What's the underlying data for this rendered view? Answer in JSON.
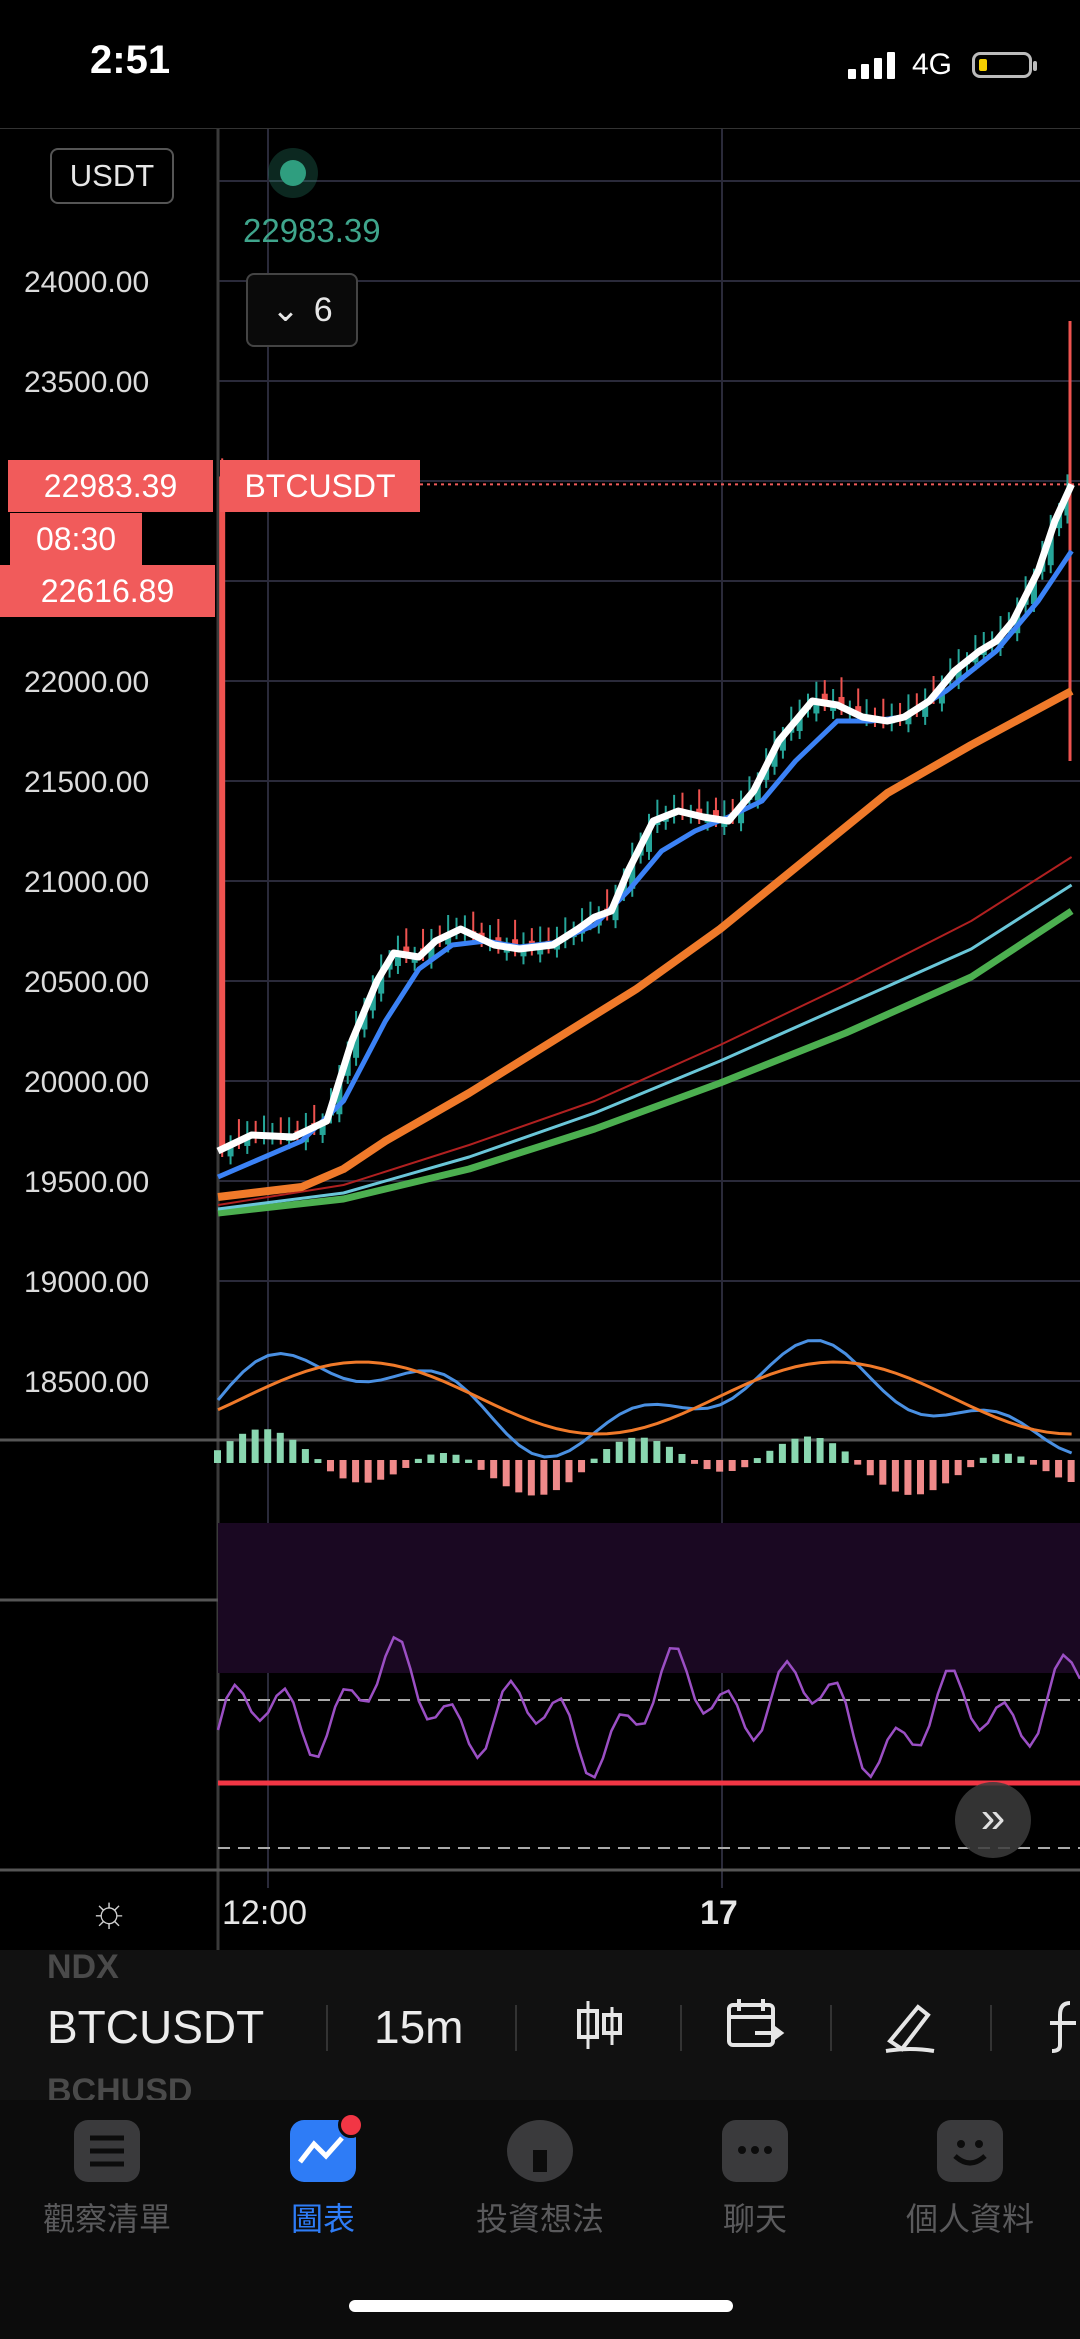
{
  "status_bar": {
    "time": "2:51",
    "network": "4G"
  },
  "chart": {
    "currency": "USDT",
    "live_price": "22983.39",
    "collapsed_count": "6",
    "price_tag": "22983.39",
    "symbol_tag": "BTCUSDT",
    "time_tag": "08:30",
    "low_tag": "22616.89",
    "x_labels": [
      "12:00",
      "17"
    ]
  },
  "chart_data": {
    "type": "line",
    "y_ticks": [
      "24000.00",
      "23500.00",
      "22000.00",
      "21500.00",
      "21000.00",
      "20500.00",
      "20000.00",
      "19500.00",
      "19000.00",
      "18500.00"
    ],
    "ylim": [
      18300,
      24500
    ],
    "x_tick_labels": [
      "12:00",
      "17"
    ],
    "series": [
      {
        "key": "close",
        "color": "#ffffff",
        "points": [
          [
            0,
            19650
          ],
          [
            8,
            19730
          ],
          [
            18,
            19720
          ],
          [
            26,
            19800
          ],
          [
            32,
            20200
          ],
          [
            38,
            20500
          ],
          [
            42,
            20640
          ],
          [
            48,
            20620
          ],
          [
            52,
            20700
          ],
          [
            58,
            20760
          ],
          [
            62,
            20720
          ],
          [
            66,
            20680
          ],
          [
            72,
            20660
          ],
          [
            80,
            20680
          ],
          [
            86,
            20760
          ],
          [
            90,
            20820
          ],
          [
            94,
            20850
          ],
          [
            98,
            21050
          ],
          [
            104,
            21300
          ],
          [
            110,
            21350
          ],
          [
            116,
            21320
          ],
          [
            122,
            21300
          ],
          [
            128,
            21450
          ],
          [
            134,
            21700
          ],
          [
            138,
            21800
          ],
          [
            142,
            21900
          ],
          [
            148,
            21880
          ],
          [
            154,
            21820
          ],
          [
            160,
            21800
          ],
          [
            164,
            21820
          ],
          [
            170,
            21900
          ],
          [
            176,
            22050
          ],
          [
            182,
            22150
          ],
          [
            186,
            22200
          ],
          [
            190,
            22300
          ],
          [
            196,
            22550
          ],
          [
            200,
            22800
          ],
          [
            204,
            22983
          ]
        ]
      },
      {
        "key": "ema-fast",
        "color": "#3b82f6",
        "points": [
          [
            0,
            19520
          ],
          [
            20,
            19700
          ],
          [
            30,
            19900
          ],
          [
            40,
            20300
          ],
          [
            48,
            20560
          ],
          [
            56,
            20680
          ],
          [
            64,
            20700
          ],
          [
            72,
            20670
          ],
          [
            80,
            20690
          ],
          [
            90,
            20780
          ],
          [
            98,
            20950
          ],
          [
            106,
            21150
          ],
          [
            114,
            21250
          ],
          [
            122,
            21320
          ],
          [
            130,
            21400
          ],
          [
            138,
            21600
          ],
          [
            148,
            21800
          ],
          [
            156,
            21800
          ],
          [
            164,
            21820
          ],
          [
            174,
            21950
          ],
          [
            186,
            22150
          ],
          [
            196,
            22400
          ],
          [
            204,
            22650
          ]
        ]
      },
      {
        "key": "ema-mid",
        "color": "#f07a2a",
        "points": [
          [
            0,
            19420
          ],
          [
            20,
            19470
          ],
          [
            30,
            19560
          ],
          [
            40,
            19700
          ],
          [
            60,
            19940
          ],
          [
            80,
            20200
          ],
          [
            100,
            20460
          ],
          [
            120,
            20760
          ],
          [
            140,
            21100
          ],
          [
            160,
            21440
          ],
          [
            180,
            21680
          ],
          [
            204,
            21950
          ]
        ]
      },
      {
        "key": "ma-slow-1",
        "color": "#b02020",
        "points": [
          [
            0,
            19380
          ],
          [
            30,
            19480
          ],
          [
            60,
            19680
          ],
          [
            90,
            19900
          ],
          [
            120,
            20180
          ],
          [
            150,
            20480
          ],
          [
            180,
            20800
          ],
          [
            204,
            21120
          ]
        ]
      },
      {
        "key": "ma-slow-2",
        "color": "#6ac6d8",
        "points": [
          [
            0,
            19360
          ],
          [
            30,
            19440
          ],
          [
            60,
            19620
          ],
          [
            90,
            19840
          ],
          [
            120,
            20100
          ],
          [
            150,
            20380
          ],
          [
            180,
            20660
          ],
          [
            204,
            20980
          ]
        ]
      },
      {
        "key": "ma-slow-3",
        "color": "#4caf50",
        "points": [
          [
            0,
            19340
          ],
          [
            30,
            19410
          ],
          [
            60,
            19560
          ],
          [
            90,
            19760
          ],
          [
            120,
            19990
          ],
          [
            150,
            20240
          ],
          [
            180,
            20520
          ],
          [
            204,
            20850
          ]
        ]
      }
    ]
  },
  "toolbar": {
    "prev_symbol": "NDX",
    "symbol": "BTCUSDT",
    "interval": "15m",
    "next_symbol": "BCHUSD"
  },
  "nav": {
    "items": [
      {
        "label": "觀察清單",
        "icon": "watchlist-icon"
      },
      {
        "label": "圖表",
        "icon": "chart-icon",
        "active": true
      },
      {
        "label": "投資想法",
        "icon": "ideas-icon"
      },
      {
        "label": "聊天",
        "icon": "chat-icon"
      },
      {
        "label": "個人資料",
        "icon": "profile-icon"
      }
    ]
  }
}
